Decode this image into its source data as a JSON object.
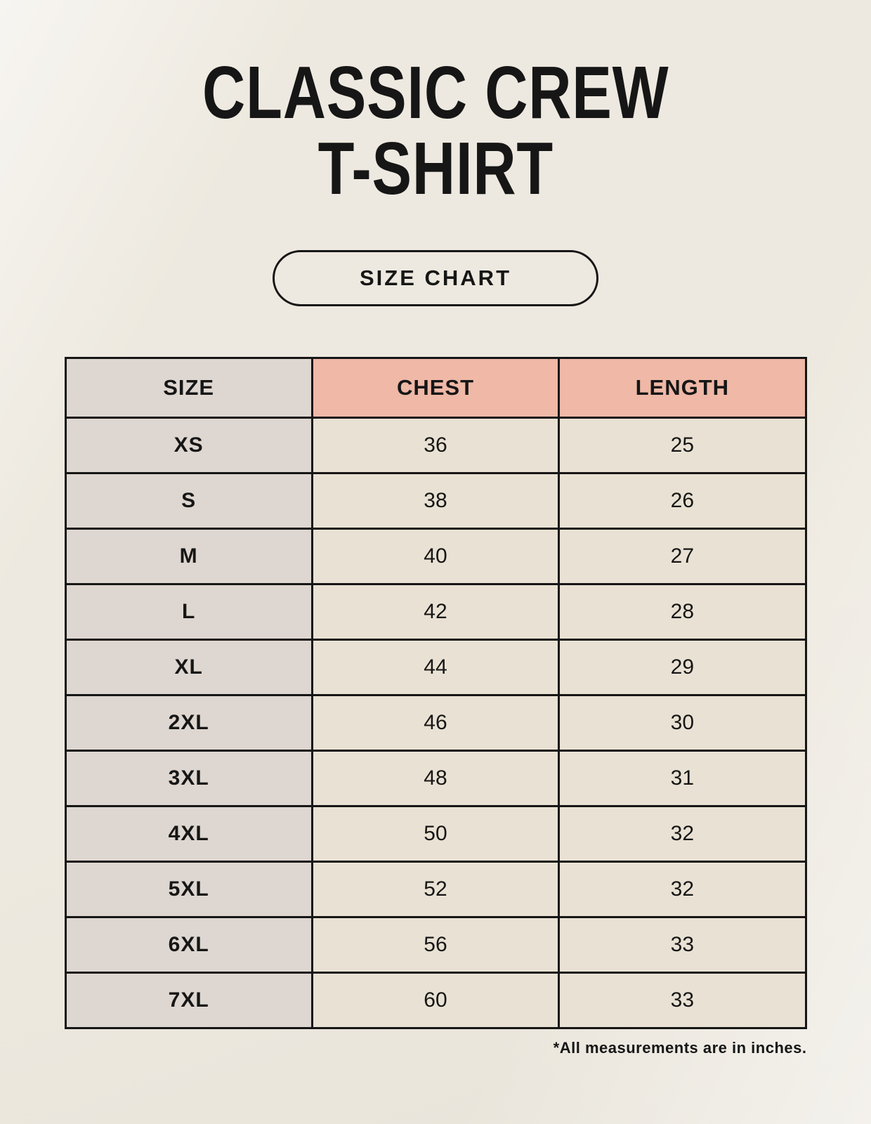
{
  "page": {
    "title_line1": "CLASSIC CREW",
    "title_line2": "T-SHIRT",
    "size_chart_button_label": "SIZE CHART",
    "footnote": "*All measurements are in inches."
  },
  "colors": {
    "background": "#f4f0e7",
    "size_column_bg": "#ded6d0",
    "header_accent_bg": "#efb8a7",
    "cell_bg": "#e9e2d4",
    "border": "#161616",
    "text": "#161616"
  },
  "chart_data": {
    "type": "table",
    "title": "CLASSIC CREW T-SHIRT SIZE CHART",
    "units": "inches",
    "columns": [
      "SIZE",
      "CHEST",
      "LENGTH"
    ],
    "rows": [
      {
        "size": "XS",
        "chest": 36,
        "length": 25
      },
      {
        "size": "S",
        "chest": 38,
        "length": 26
      },
      {
        "size": "M",
        "chest": 40,
        "length": 27
      },
      {
        "size": "L",
        "chest": 42,
        "length": 28
      },
      {
        "size": "XL",
        "chest": 44,
        "length": 29
      },
      {
        "size": "2XL",
        "chest": 46,
        "length": 30
      },
      {
        "size": "3XL",
        "chest": 48,
        "length": 31
      },
      {
        "size": "4XL",
        "chest": 50,
        "length": 32
      },
      {
        "size": "5XL",
        "chest": 52,
        "length": 32
      },
      {
        "size": "6XL",
        "chest": 56,
        "length": 33
      },
      {
        "size": "7XL",
        "chest": 60,
        "length": 33
      }
    ]
  }
}
